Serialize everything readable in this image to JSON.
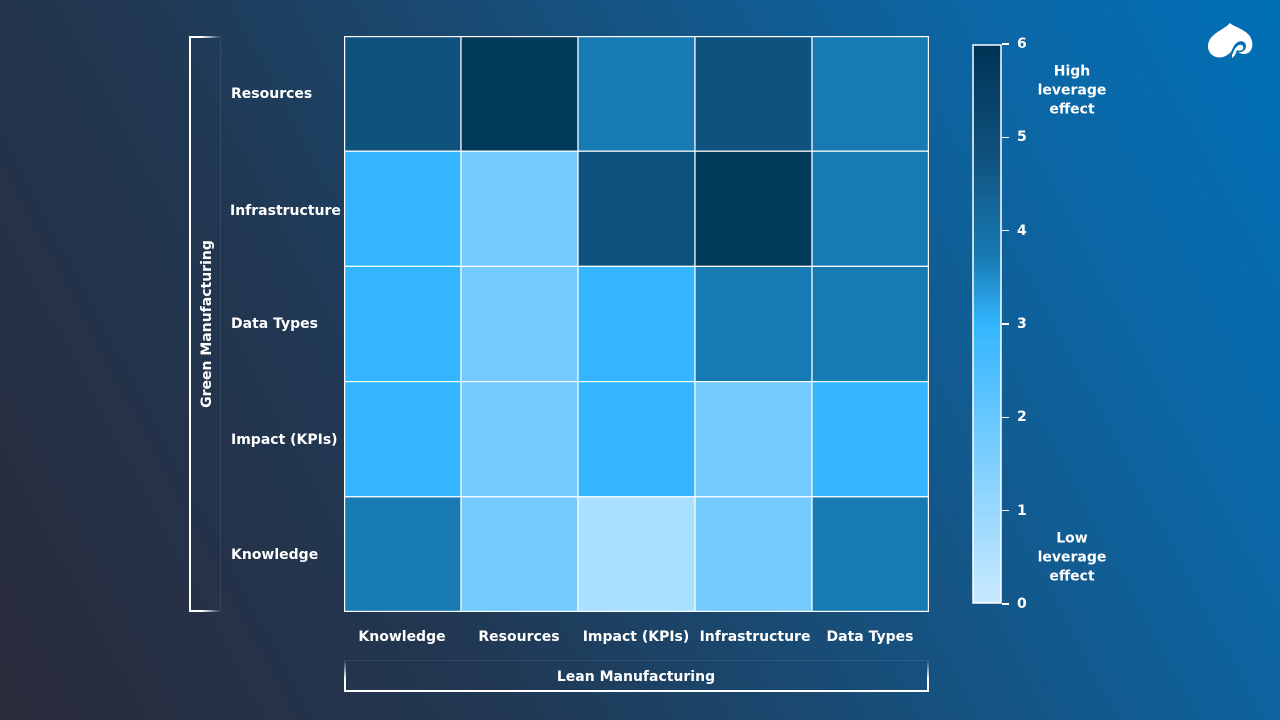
{
  "chart_data": {
    "type": "heatmap",
    "title": "",
    "xlabel": "Lean Manufacturing",
    "ylabel": "Green Manufacturing",
    "x_categories": [
      "Knowledge",
      "Resources",
      "Impact (KPIs)",
      "Infrastructure",
      "Data Types"
    ],
    "y_categories": [
      "Resources",
      "Infrastructure",
      "Data Types",
      "Impact (KPIs)",
      "Knowledge"
    ],
    "values": [
      [
        5,
        6,
        4,
        5,
        4
      ],
      [
        3,
        2,
        5,
        6,
        4
      ],
      [
        3,
        2,
        3,
        4,
        4
      ],
      [
        3,
        2,
        3,
        2,
        3
      ],
      [
        4,
        2,
        1,
        2,
        4
      ]
    ],
    "colorbar": {
      "range": [
        0,
        6
      ],
      "ticks": [
        "0",
        "1",
        "2",
        "3",
        "4",
        "5",
        "6"
      ],
      "high_label": "High leverage effect",
      "low_label": "Low leverage effect",
      "high_lines": [
        "High",
        "leverage",
        "effect"
      ],
      "low_lines": [
        "Low",
        "leverage",
        "effect"
      ]
    },
    "value_colors": {
      "0": "#c9e9ff",
      "1": "#a9dfff",
      "2": "#72caff",
      "3": "#33b6ff",
      "4": "#177ab3",
      "5": "#10527e",
      "6": "#003a5a"
    },
    "gradient_stops": [
      "#c9e9ff",
      "#33b6ff",
      "#177ab3",
      "#10527e",
      "#003355"
    ],
    "cell_border_color": "#ffffff"
  },
  "logo": {
    "name": "spade-logo",
    "color": "#ffffff"
  }
}
